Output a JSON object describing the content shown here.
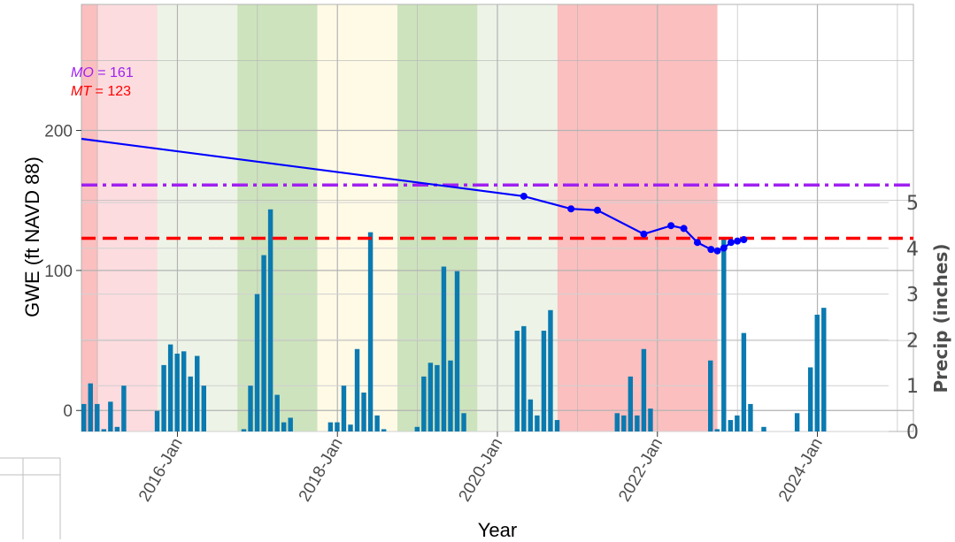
{
  "chart_data": {
    "type": "line",
    "xlabel": "Year",
    "ylabel": "GWE (ft NAVD 88)",
    "y2label": "Precip (inches)",
    "xlim": [
      2014.8,
      2025.2
    ],
    "ylim": [
      -15,
      290
    ],
    "y2lim": [
      0,
      5
    ],
    "grid": true,
    "x_ticks": [
      {
        "value": 2016,
        "label": "2016-Jan"
      },
      {
        "value": 2018,
        "label": "2018-Jan"
      },
      {
        "value": 2020,
        "label": "2020-Jan"
      },
      {
        "value": 2022,
        "label": "2022-Jan"
      },
      {
        "value": 2024,
        "label": "2024-Jan"
      }
    ],
    "y_ticks": [
      {
        "value": 0,
        "label": "0"
      },
      {
        "value": 100,
        "label": "100"
      },
      {
        "value": 200,
        "label": "200"
      }
    ],
    "y2_ticks": [
      {
        "value": 0,
        "label": "0"
      },
      {
        "value": 1,
        "label": "1"
      },
      {
        "value": 2,
        "label": "2"
      },
      {
        "value": 3,
        "label": "3"
      },
      {
        "value": 4,
        "label": "4"
      },
      {
        "value": 5,
        "label": "5"
      }
    ],
    "thresholds": [
      {
        "label": "MO",
        "value": 161,
        "text": " = 161",
        "color": "#a020f0"
      },
      {
        "label": "MT",
        "value": 123,
        "text": " = 123",
        "color": "#ff0000"
      }
    ],
    "water_year_bands": [
      {
        "start": 2014.8,
        "end": 2015.0,
        "color": "#fbbfbf"
      },
      {
        "start": 2015.0,
        "end": 2015.75,
        "color": "#fcdcdf"
      },
      {
        "start": 2015.75,
        "end": 2016.75,
        "color": "#edf4e7"
      },
      {
        "start": 2016.75,
        "end": 2017.75,
        "color": "#cde3bd"
      },
      {
        "start": 2017.75,
        "end": 2018.75,
        "color": "#fffae6"
      },
      {
        "start": 2018.75,
        "end": 2019.75,
        "color": "#cde3bd"
      },
      {
        "start": 2019.75,
        "end": 2020.75,
        "color": "#edf4e7"
      },
      {
        "start": 2020.75,
        "end": 2022.75,
        "color": "#fbbfbf"
      }
    ],
    "gwe_line": {
      "color": "#0000ff",
      "points": [
        {
          "x": 2014.8,
          "y": 194
        },
        {
          "x": 2020.33,
          "y": 153
        },
        {
          "x": 2020.92,
          "y": 144
        },
        {
          "x": 2021.25,
          "y": 143
        },
        {
          "x": 2021.83,
          "y": 126
        },
        {
          "x": 2022.17,
          "y": 132
        },
        {
          "x": 2022.33,
          "y": 130
        },
        {
          "x": 2022.5,
          "y": 120
        },
        {
          "x": 2022.67,
          "y": 115
        },
        {
          "x": 2022.75,
          "y": 114
        },
        {
          "x": 2022.83,
          "y": 116
        },
        {
          "x": 2022.92,
          "y": 120
        },
        {
          "x": 2023.0,
          "y": 121
        },
        {
          "x": 2023.08,
          "y": 122
        }
      ],
      "marked_from_index": 1
    },
    "precip_bars": {
      "color": "#0a7ab0",
      "start_x": 2014.83,
      "step": 0.0833333,
      "values": [
        0.6,
        1.05,
        0.6,
        0.05,
        0.65,
        0.1,
        1.0,
        0,
        0,
        0,
        0,
        0.45,
        1.45,
        1.9,
        1.7,
        1.75,
        1.2,
        1.65,
        1.0,
        0,
        0,
        0,
        0,
        0,
        0.05,
        1.0,
        3.0,
        3.85,
        4.85,
        0.8,
        0.2,
        0.3,
        0,
        0,
        0,
        0,
        0,
        0.2,
        0.2,
        1.0,
        0.15,
        1.8,
        0.85,
        4.35,
        0.35,
        0.05,
        0,
        0,
        0,
        0,
        0.1,
        1.2,
        1.5,
        1.45,
        3.6,
        1.55,
        3.5,
        0.4,
        0,
        0,
        0,
        0,
        0,
        0,
        0,
        2.2,
        2.3,
        0.7,
        0.35,
        2.2,
        2.65,
        0.25,
        0,
        0,
        0,
        0,
        0,
        0,
        0,
        0,
        0.4,
        0.35,
        1.2,
        0.35,
        1.8,
        0.5,
        0,
        0,
        0,
        0,
        0,
        0,
        0,
        0,
        1.55,
        0.05,
        4.2,
        0.25,
        0.35,
        2.15,
        0.6,
        0,
        0.1,
        0,
        0,
        0,
        0,
        0.4,
        0,
        1.4,
        2.55,
        2.7
      ]
    }
  }
}
